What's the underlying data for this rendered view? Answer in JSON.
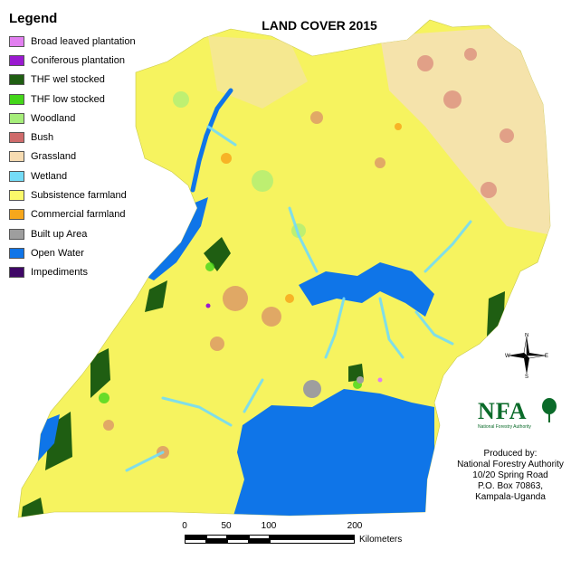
{
  "map": {
    "title": "LAND COVER 2015",
    "legend": {
      "title": "Legend",
      "items": [
        {
          "label": "Broad leaved plantation",
          "color": "#e27ff0"
        },
        {
          "label": "Coniferous plantation",
          "color": "#9a1ad0"
        },
        {
          "label": "THF wel stocked",
          "color": "#1f5e12"
        },
        {
          "label": "THF low stocked",
          "color": "#44d61a"
        },
        {
          "label": "Woodland",
          "color": "#a6ee7a"
        },
        {
          "label": "Bush",
          "color": "#cf6b6b"
        },
        {
          "label": "Grassland",
          "color": "#f7dcb2"
        },
        {
          "label": "Wetland",
          "color": "#74dcf7"
        },
        {
          "label": "Subsistence farmland",
          "color": "#fbf96a"
        },
        {
          "label": "Commercial farmland",
          "color": "#f7a71c"
        },
        {
          "label": "Built up Area",
          "color": "#9e9e9e"
        },
        {
          "label": "Open Water",
          "color": "#0f75e8"
        },
        {
          "label": "Impediments",
          "color": "#3f0766"
        }
      ]
    },
    "north_arrow": {
      "n": "N",
      "s": "S",
      "e": "E",
      "w": "W",
      "icon": "compass-rose-icon"
    },
    "logo": {
      "text": "NFA",
      "subtext": "National Forestry Authority"
    },
    "producer": {
      "line1": "Produced by:",
      "line2": "National Forestry Authority",
      "line3": "10/20 Spring Road",
      "line4": "P.O. Box 70863,",
      "line5": "Kampala-Uganda"
    },
    "scale_bar": {
      "ticks": [
        "0",
        "50",
        "100",
        "200"
      ],
      "unit": "Kilometers"
    }
  }
}
